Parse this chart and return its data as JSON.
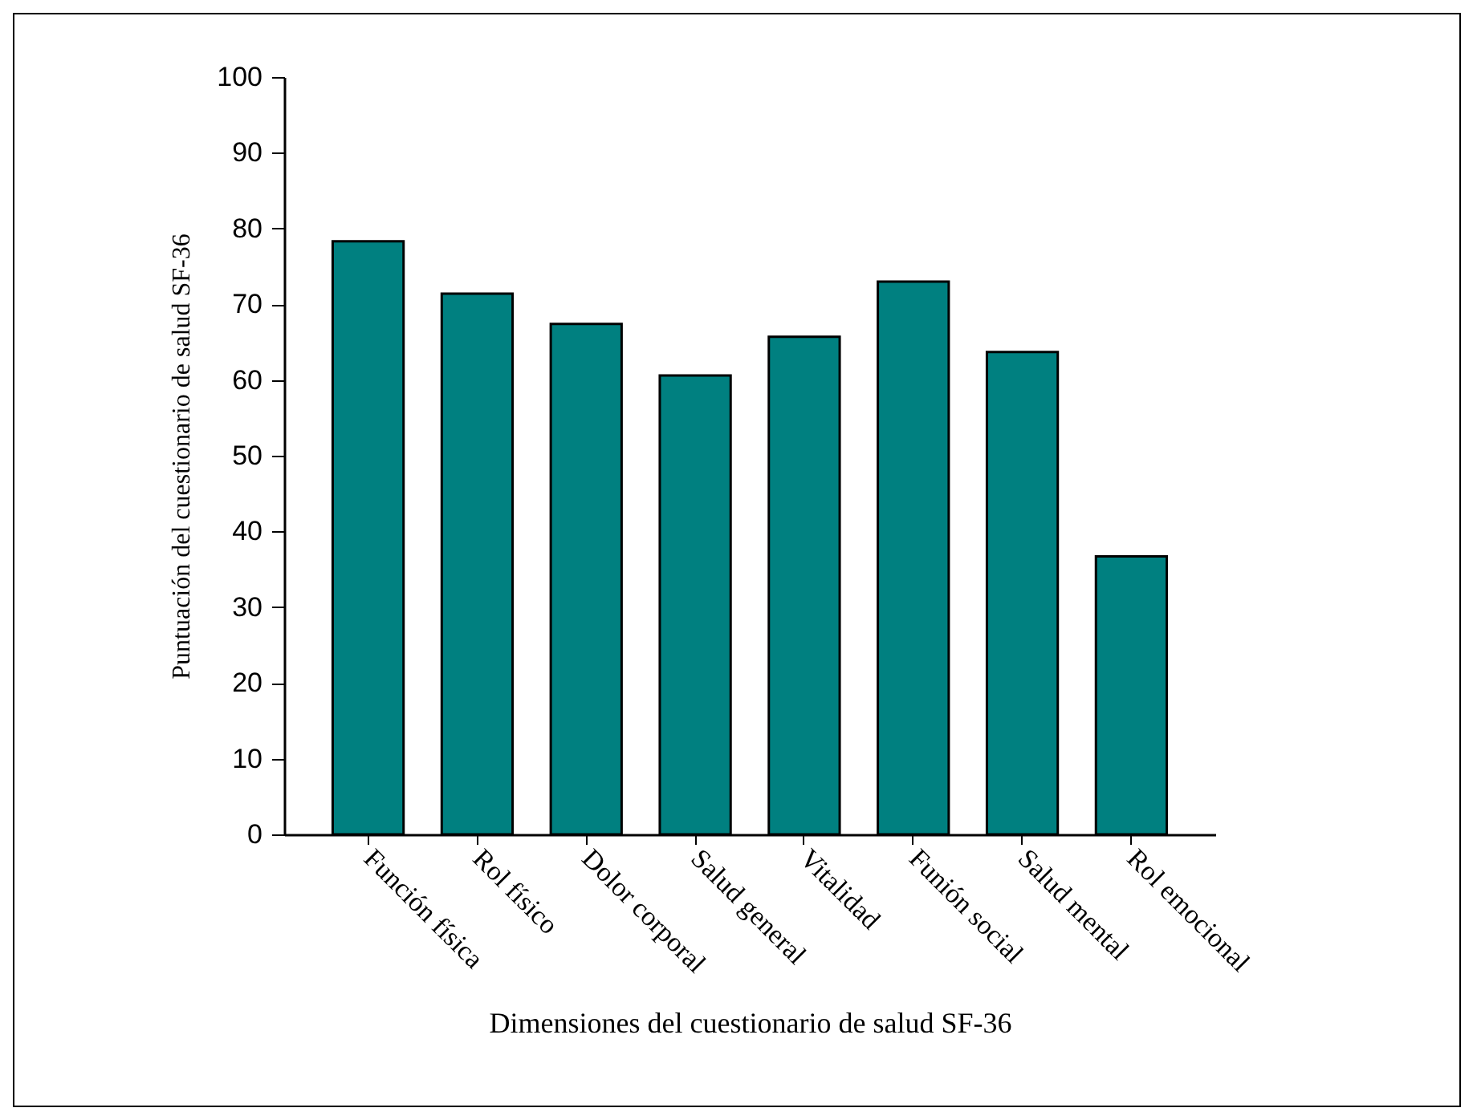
{
  "chart_data": {
    "type": "bar",
    "xlabel": "Dimensiones del cuestionario de salud SF-36",
    "ylabel": "Puntuación del cuestionario de salud SF-36",
    "categories": [
      "Función física",
      "Rol físico",
      "Dolor corporal",
      "Salud general",
      "Vitalidad",
      "Funión social",
      "Salud mental",
      "Rol emocional"
    ],
    "values": [
      78.3,
      71.4,
      67.4,
      60.6,
      65.7,
      73.0,
      63.7,
      36.7
    ],
    "color": "#008080",
    "ylim": [
      0,
      100
    ],
    "yticks": [
      0,
      10,
      20,
      30,
      40,
      50,
      60,
      70,
      80,
      90,
      100
    ],
    "grid": false
  }
}
